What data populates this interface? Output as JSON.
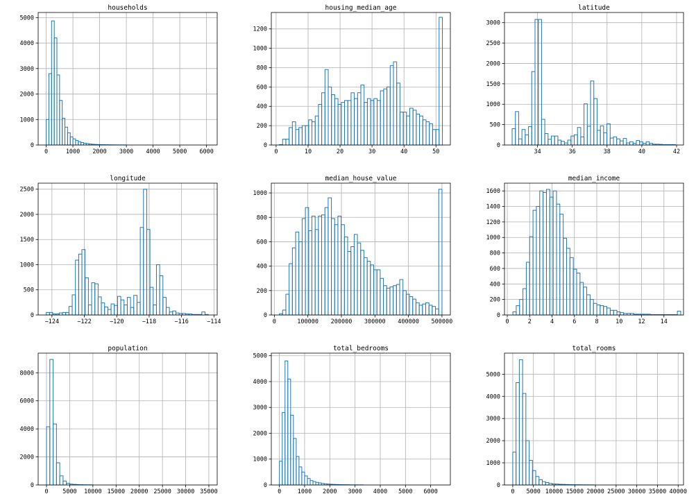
{
  "chart_data": [
    {
      "type": "bar",
      "title": "households",
      "xlabel": "",
      "ylabel": "",
      "grid": true,
      "xlim": [
        -300,
        6400
      ],
      "ylim": [
        0,
        5200
      ],
      "xticks": [
        0,
        1000,
        2000,
        3000,
        4000,
        5000,
        6000
      ],
      "yticks": [
        0,
        1000,
        2000,
        3000,
        4000,
        5000
      ],
      "bin_edges": [
        2,
        101.9,
        201.7,
        301.6,
        401.4,
        501.3,
        601.2,
        701,
        800.9,
        900.7,
        1000.6,
        1100.5,
        1200.3,
        1300.2,
        1400,
        1499.9,
        1599.8,
        1699.6,
        1799.5,
        1899.3,
        1999.2,
        2099.1,
        2198.9,
        2298.8,
        2398.6,
        2498.5,
        2598.4,
        2698.2,
        2798.1,
        2897.9,
        2997.8
      ],
      "counts": [
        1000,
        2800,
        4870,
        4200,
        2750,
        1750,
        1050,
        700,
        480,
        320,
        240,
        180,
        130,
        95,
        70,
        55,
        40,
        30,
        22,
        18,
        14,
        12,
        10,
        8,
        6,
        5,
        4,
        3,
        3,
        2
      ]
    },
    {
      "type": "bar",
      "title": "housing_median_age",
      "xlabel": "",
      "ylabel": "",
      "grid": true,
      "xlim": [
        -1.5,
        54.5
      ],
      "ylim": [
        0,
        1370
      ],
      "xticks": [
        0,
        10,
        20,
        30,
        40,
        50
      ],
      "yticks": [
        0,
        200,
        400,
        600,
        800,
        1000,
        1200
      ],
      "bin_edges": [
        1,
        2.02,
        3.04,
        4.06,
        5.08,
        6.1,
        7.12,
        8.14,
        9.16,
        10.18,
        11.2,
        12.22,
        13.24,
        14.26,
        15.28,
        16.3,
        17.32,
        18.34,
        19.36,
        20.38,
        21.4,
        22.42,
        23.44,
        24.46,
        25.48,
        26.5,
        27.52,
        28.54,
        29.56,
        30.58,
        31.6,
        32.62,
        33.64,
        34.66,
        35.68,
        36.7,
        37.72,
        38.74,
        39.76,
        40.78,
        41.8,
        42.82,
        43.84,
        44.86,
        45.88,
        46.9,
        47.92,
        48.94,
        49.96,
        50.98,
        52
      ],
      "counts": [
        4,
        60,
        60,
        180,
        240,
        160,
        180,
        200,
        200,
        260,
        240,
        300,
        420,
        540,
        780,
        600,
        520,
        480,
        420,
        440,
        460,
        460,
        540,
        480,
        540,
        620,
        440,
        480,
        460,
        480,
        460,
        560,
        580,
        600,
        820,
        860,
        640,
        340,
        340,
        300,
        380,
        360,
        320,
        300,
        260,
        240,
        220,
        160,
        160,
        1320
      ]
    },
    {
      "type": "bar",
      "title": "latitude",
      "xlabel": "",
      "ylabel": "",
      "grid": true,
      "xlim": [
        32.1,
        42.4
      ],
      "ylim": [
        0,
        3250
      ],
      "xticks": [
        34,
        36,
        38,
        40,
        42
      ],
      "yticks": [
        0,
        500,
        1000,
        1500,
        2000,
        2500,
        3000
      ],
      "bin_edges": [
        32.54,
        32.728,
        32.916,
        33.104,
        33.292,
        33.48,
        33.668,
        33.856,
        34.044,
        34.232,
        34.42,
        34.608,
        34.796,
        34.984,
        35.172,
        35.36,
        35.548,
        35.736,
        35.924,
        36.112,
        36.3,
        36.488,
        36.676,
        36.864,
        37.052,
        37.24,
        37.428,
        37.616,
        37.804,
        37.992,
        38.18,
        38.368,
        38.556,
        38.744,
        38.932,
        39.12,
        39.308,
        39.496,
        39.684,
        39.872,
        40.06,
        40.248,
        40.436,
        40.624,
        40.812,
        41,
        41.188,
        41.376,
        41.564,
        41.752,
        41.94
      ],
      "counts": [
        400,
        820,
        150,
        380,
        250,
        450,
        1800,
        3080,
        3080,
        630,
        280,
        140,
        220,
        220,
        120,
        90,
        50,
        120,
        220,
        250,
        430,
        200,
        1010,
        460,
        1570,
        1140,
        360,
        470,
        300,
        520,
        170,
        200,
        150,
        100,
        160,
        50,
        80,
        40,
        110,
        80,
        40,
        80,
        40,
        20,
        20,
        15,
        10,
        10,
        10,
        10
      ]
    },
    {
      "type": "bar",
      "title": "longitude",
      "xlabel": "",
      "ylabel": "",
      "grid": true,
      "xlim": [
        -124.85,
        -113.8
      ],
      "ylim": [
        0,
        2620
      ],
      "xticks": [
        -124,
        -122,
        -120,
        -118,
        -116,
        -114
      ],
      "yticks": [
        0,
        500,
        1000,
        1500,
        2000,
        2500
      ],
      "bin_edges": [
        -124.35,
        -124.15,
        -123.95,
        -123.75,
        -123.55,
        -123.35,
        -123.15,
        -122.95,
        -122.75,
        -122.55,
        -122.35,
        -122.15,
        -121.95,
        -121.75,
        -121.55,
        -121.35,
        -121.15,
        -120.95,
        -120.75,
        -120.55,
        -120.35,
        -120.15,
        -119.95,
        -119.75,
        -119.55,
        -119.35,
        -119.15,
        -118.95,
        -118.75,
        -118.55,
        -118.35,
        -118.15,
        -117.95,
        -117.75,
        -117.55,
        -117.35,
        -117.15,
        -116.95,
        -116.75,
        -116.55,
        -116.35,
        -116.15,
        -115.95,
        -115.75,
        -115.55,
        -115.35,
        -115.15,
        -114.95,
        -114.75,
        -114.55,
        -114.35
      ],
      "counts": [
        50,
        50,
        20,
        20,
        40,
        50,
        50,
        170,
        400,
        1090,
        1210,
        1300,
        740,
        200,
        640,
        620,
        360,
        240,
        160,
        110,
        220,
        190,
        370,
        300,
        200,
        350,
        150,
        390,
        250,
        1740,
        2500,
        1700,
        550,
        200,
        1000,
        780,
        350,
        150,
        60,
        80,
        40,
        30,
        30,
        20,
        20,
        10,
        10,
        10,
        60,
        10
      ]
    },
    {
      "type": "bar",
      "title": "median_house_value",
      "xlabel": "",
      "ylabel": "",
      "grid": true,
      "xlim": [
        -9000,
        525000
      ],
      "ylim": [
        0,
        1080
      ],
      "xticks": [
        0,
        100000,
        200000,
        300000,
        400000,
        500000
      ],
      "yticks": [
        0,
        200,
        400,
        600,
        800,
        1000
      ],
      "bin_edges": [
        14999,
        24700,
        34400,
        44100,
        53800,
        63499,
        73199,
        82899,
        92599,
        102299,
        111999,
        121699,
        131399,
        141099,
        150799,
        160499,
        170199,
        179899,
        189599,
        199299,
        208999,
        218699,
        228399,
        238099,
        247799,
        257499,
        267199,
        276899,
        286599,
        296299,
        305999,
        315699,
        325399,
        335099,
        344799,
        354499,
        364199,
        373899,
        383599,
        393299,
        402999,
        412699,
        422399,
        432099,
        441799,
        451499,
        461199,
        470899,
        480599,
        490299,
        500001
      ],
      "counts": [
        10,
        40,
        170,
        420,
        550,
        680,
        600,
        790,
        880,
        690,
        810,
        700,
        810,
        820,
        880,
        960,
        790,
        740,
        810,
        740,
        640,
        520,
        560,
        660,
        590,
        530,
        470,
        440,
        410,
        370,
        370,
        300,
        240,
        220,
        230,
        240,
        250,
        290,
        200,
        170,
        150,
        130,
        100,
        80,
        90,
        100,
        80,
        70,
        50,
        1030
      ]
    },
    {
      "type": "bar",
      "title": "median_income",
      "xlabel": "",
      "ylabel": "",
      "grid": true,
      "xlim": [
        -0.25,
        15.75
      ],
      "ylim": [
        0,
        1700
      ],
      "xticks": [
        0,
        2,
        4,
        6,
        8,
        10,
        12,
        14
      ],
      "yticks": [
        0,
        200,
        400,
        600,
        800,
        1000,
        1200,
        1400,
        1600
      ],
      "bin_edges": [
        0.4999,
        0.7999,
        1.0999,
        1.3999,
        1.6999,
        1.9999,
        2.2999,
        2.5999,
        2.8999,
        3.1999,
        3.4999,
        3.7999,
        4.0999,
        4.3999,
        4.6999,
        4.9999,
        5.2999,
        5.5999,
        5.8999,
        6.1999,
        6.4999,
        6.7999,
        7.0999,
        7.3999,
        7.6999,
        7.9999,
        8.2999,
        8.5999,
        8.8999,
        9.1999,
        9.4999,
        9.7999,
        10.0999,
        10.3999,
        10.6999,
        10.9999,
        11.2999,
        11.5999,
        11.8999,
        12.1999,
        12.4999,
        12.7999,
        13.0999,
        13.3999,
        13.6999,
        13.9999,
        14.2999,
        14.5999,
        14.8999,
        15.1999,
        15.5
      ],
      "counts": [
        40,
        120,
        200,
        340,
        680,
        1010,
        1350,
        1400,
        1600,
        1580,
        1620,
        1520,
        1600,
        1430,
        1300,
        990,
        860,
        740,
        590,
        540,
        420,
        360,
        260,
        200,
        150,
        130,
        120,
        110,
        90,
        60,
        60,
        40,
        30,
        20,
        20,
        20,
        10,
        10,
        10,
        10,
        10,
        5,
        5,
        5,
        5,
        5,
        5,
        5,
        5,
        50
      ]
    },
    {
      "type": "bar",
      "title": "population",
      "xlabel": "",
      "ylabel": "",
      "grid": true,
      "xlim": [
        -1800,
        36800
      ],
      "ylim": [
        0,
        9400
      ],
      "xticks": [
        0,
        5000,
        10000,
        15000,
        20000,
        25000,
        30000,
        35000
      ],
      "yticks": [
        0,
        2000,
        4000,
        6000,
        8000
      ],
      "bin_edges": [
        3,
        716.6,
        1430.1,
        2143.7,
        2857.2,
        3570.8,
        4284.4,
        4997.9,
        5711.5,
        6425,
        7138.6,
        7852.2,
        8565.7,
        9279.3,
        9992.8
      ],
      "counts": [
        4150,
        8950,
        4350,
        1580,
        650,
        280,
        120,
        60,
        40,
        30,
        20,
        15,
        10,
        8
      ]
    },
    {
      "type": "bar",
      "title": "total_bedrooms",
      "xlabel": "",
      "ylabel": "",
      "grid": true,
      "xlim": [
        -320,
        6780
      ],
      "ylim": [
        0,
        5100
      ],
      "xticks": [
        0,
        1000,
        2000,
        3000,
        4000,
        5000,
        6000
      ],
      "yticks": [
        0,
        1000,
        2000,
        3000,
        4000,
        5000
      ],
      "bin_edges": [
        2,
        112.8,
        223.6,
        334.4,
        445.2,
        556,
        666.8,
        777.6,
        888.4,
        999.2,
        1110,
        1220.8,
        1331.6,
        1442.4,
        1553.2,
        1664,
        1774.8,
        1885.6,
        1996.4,
        2107.2,
        2218,
        2328.8,
        2439.6,
        2550.4,
        2661.2,
        2772,
        2882.8,
        2993.6,
        3104.4,
        3215.2,
        3326
      ],
      "counts": [
        920,
        2800,
        4800,
        4100,
        2700,
        1800,
        1100,
        700,
        500,
        350,
        250,
        170,
        130,
        100,
        80,
        60,
        45,
        35,
        28,
        22,
        18,
        15,
        12,
        10,
        8,
        6,
        5,
        4,
        3,
        3
      ]
    },
    {
      "type": "bar",
      "title": "total_rooms",
      "xlabel": "",
      "ylabel": "",
      "grid": true,
      "xlim": [
        -2000,
        41300
      ],
      "ylim": [
        0,
        5950
      ],
      "xticks": [
        0,
        5000,
        10000,
        15000,
        20000,
        25000,
        30000,
        35000,
        40000
      ],
      "yticks": [
        0,
        1000,
        2000,
        3000,
        4000,
        5000
      ],
      "bin_edges": [
        2,
        795.9,
        1589.8,
        2383.6,
        3177.5,
        3971.4,
        4765.3,
        5559.2,
        6353,
        7146.9,
        7940.8,
        8734.7,
        9528.6,
        10322.4,
        11116.3,
        11910.2,
        12704.1,
        13498,
        14291.8,
        15085.7,
        15879.6,
        16673.5,
        17467.4,
        18261.2,
        19055.1,
        19849
      ],
      "counts": [
        1480,
        4620,
        5650,
        4130,
        2000,
        1110,
        650,
        380,
        240,
        150,
        110,
        70,
        50,
        40,
        30,
        25,
        20,
        15,
        12,
        10,
        8,
        6,
        5,
        4,
        3
      ]
    }
  ]
}
